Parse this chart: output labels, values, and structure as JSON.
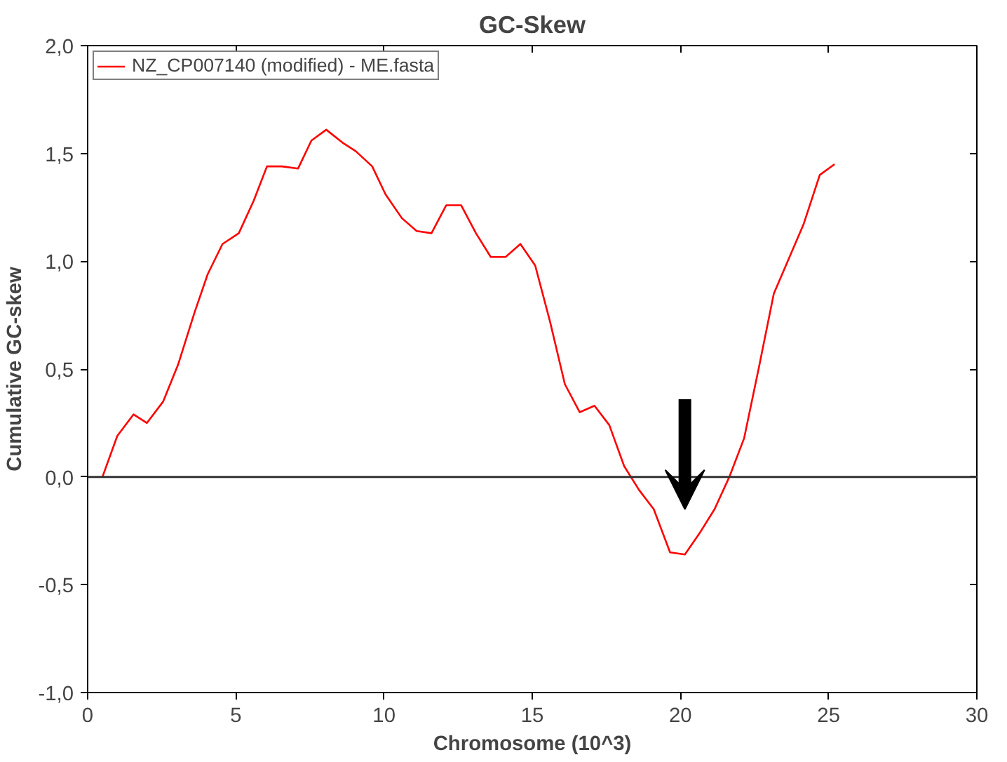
{
  "chart_data": {
    "type": "line",
    "title": "GC-Skew",
    "xlabel": "Chromosome (10^3)",
    "ylabel": "Cumulative GC-skew",
    "x": [
      0.5,
      1.0,
      1.55,
      2.0,
      2.55,
      3.05,
      3.6,
      4.05,
      4.55,
      5.1,
      5.6,
      6.05,
      6.55,
      7.1,
      7.55,
      8.05,
      8.6,
      9.05,
      9.6,
      10.05,
      10.6,
      11.1,
      11.6,
      12.1,
      12.6,
      13.1,
      13.6,
      14.1,
      14.6,
      15.1,
      15.6,
      16.1,
      16.6,
      17.1,
      17.6,
      18.1,
      18.6,
      19.1,
      19.65,
      20.15,
      20.65,
      21.15,
      21.65,
      22.15,
      22.65,
      23.15,
      23.65,
      24.15,
      24.7,
      25.2
    ],
    "series": [
      {
        "name": "NZ_CP007140 (modified) - ME.fasta",
        "color": "#ff0000",
        "values": [
          0,
          0.19,
          0.29,
          0.25,
          0.35,
          0.52,
          0.76,
          0.94,
          1.08,
          1.13,
          1.28,
          1.44,
          1.44,
          1.43,
          1.56,
          1.61,
          1.55,
          1.51,
          1.44,
          1.31,
          1.2,
          1.14,
          1.13,
          1.26,
          1.26,
          1.13,
          1.02,
          1.02,
          1.08,
          0.98,
          0.72,
          0.43,
          0.3,
          0.33,
          0.24,
          0.05,
          -0.06,
          -0.15,
          -0.35,
          -0.36,
          -0.26,
          -0.15,
          0,
          0.18,
          0.51,
          0.85,
          1.01,
          1.17,
          1.4,
          1.45
        ]
      }
    ],
    "xlim": [
      0,
      30
    ],
    "xticks": [
      0,
      5,
      10,
      15,
      20,
      25,
      30
    ],
    "ylim": [
      -1.0,
      2.0
    ],
    "yticks": [
      {
        "value": -1.0,
        "label": "-1,0"
      },
      {
        "value": -0.5,
        "label": "-0,5"
      },
      {
        "value": 0.0,
        "label": "0,0"
      },
      {
        "value": 0.5,
        "label": "0,5"
      },
      {
        "value": 1.0,
        "label": "1,0"
      },
      {
        "value": 1.5,
        "label": "1,5"
      },
      {
        "value": 2.0,
        "label": "2,0"
      }
    ],
    "ref_lines": [
      {
        "axis": "y",
        "value": 0,
        "color": "#333333"
      }
    ],
    "legend": "top left",
    "line_style": "solid"
  }
}
